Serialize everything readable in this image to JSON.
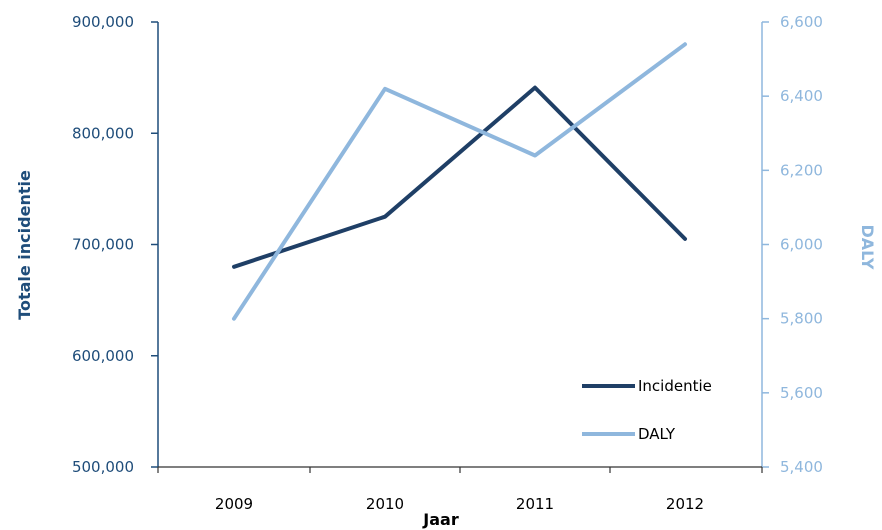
{
  "chart_data": {
    "type": "line",
    "title": "",
    "xlabel": "Jaar",
    "ylabel_left": "Totale incidentie",
    "ylabel_right": "DALY",
    "categories": [
      "2009",
      "2010",
      "2011",
      "2012"
    ],
    "y_left": {
      "min": 500000,
      "max": 900000,
      "ticks": [
        500000,
        600000,
        700000,
        800000,
        900000
      ],
      "tick_labels": [
        "500,000",
        "600,000",
        "700,000",
        "800,000",
        "900,000"
      ]
    },
    "y_right": {
      "min": 5400,
      "max": 6600,
      "ticks": [
        5400,
        5600,
        5800,
        6000,
        6200,
        6400,
        6600
      ],
      "tick_labels": [
        "5,400",
        "5,600",
        "5,800",
        "6,000",
        "6,200",
        "6,400",
        "6,600"
      ]
    },
    "series": [
      {
        "name": "Incidentie",
        "axis": "left",
        "color": "#1f3f66",
        "values": [
          680000,
          725000,
          841000,
          705000
        ]
      },
      {
        "name": "DALY",
        "axis": "right",
        "color": "#8fb7dd",
        "values": [
          5800,
          6420,
          6240,
          6540
        ]
      }
    ],
    "legend_position": "bottom-right",
    "grid": false
  }
}
